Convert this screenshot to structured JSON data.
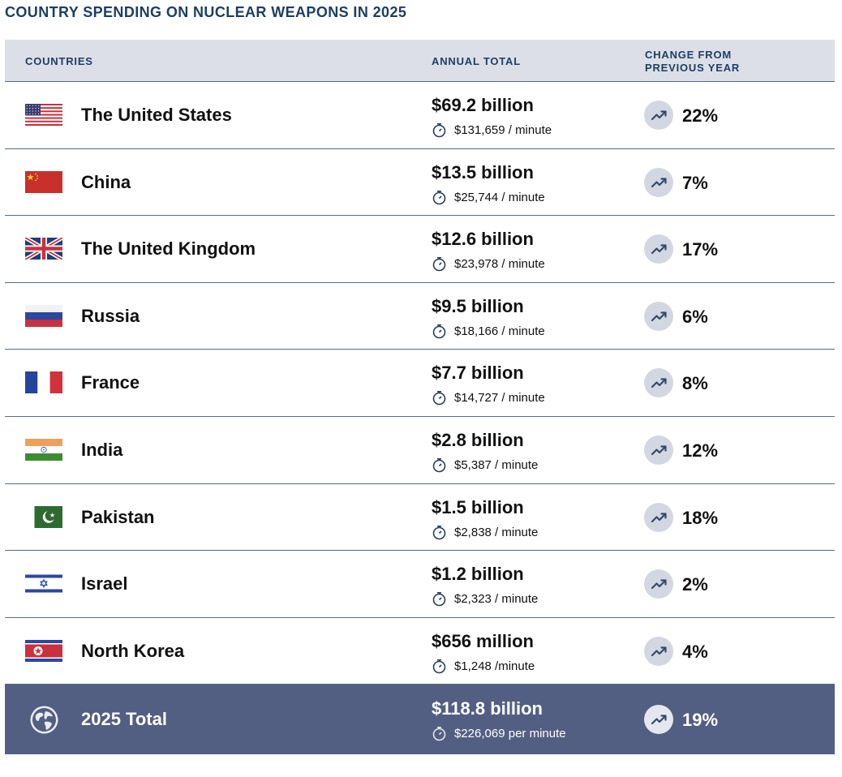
{
  "title": "COUNTRY SPENDING ON NUCLEAR WEAPONS IN 2025",
  "header": {
    "col_countries": "COUNTRIES",
    "col_annual": "ANNUAL TOTAL",
    "col_change": "CHANGE FROM PREVIOUS YEAR"
  },
  "rows": [
    {
      "country": "The United States",
      "amount": "$69.2 billion",
      "per_minute": "$131,659 / minute",
      "change": "22%",
      "flag": "us-flag"
    },
    {
      "country": "China",
      "amount": "$13.5 billion",
      "per_minute": "$25,744 / minute",
      "change": "7%",
      "flag": "china-flag"
    },
    {
      "country": "The United Kingdom",
      "amount": "$12.6 billion",
      "per_minute": "$23,978 / minute",
      "change": "17%",
      "flag": "uk-flag"
    },
    {
      "country": "Russia",
      "amount": "$9.5 billion",
      "per_minute": "$18,166 / minute",
      "change": "6%",
      "flag": "russia-flag"
    },
    {
      "country": "France",
      "amount": "$7.7 billion",
      "per_minute": "$14,727 / minute",
      "change": "8%",
      "flag": "france-flag"
    },
    {
      "country": "India",
      "amount": "$2.8 billion",
      "per_minute": "$5,387 / minute",
      "change": "12%",
      "flag": "india-flag"
    },
    {
      "country": "Pakistan",
      "amount": "$1.5 billion",
      "per_minute": "$2,838 / minute",
      "change": "18%",
      "flag": "pakistan-flag"
    },
    {
      "country": "Israel",
      "amount": "$1.2 billion",
      "per_minute": "$2,323 / minute",
      "change": "2%",
      "flag": "israel-flag"
    },
    {
      "country": "North Korea",
      "amount": "$656 million",
      "per_minute": "$1,248 /minute",
      "change": "4%",
      "flag": "north-korea-flag"
    }
  ],
  "total": {
    "label": "2025 Total",
    "amount": "$118.8 billion",
    "per_minute": "$226,069 per minute",
    "change": "19%",
    "icon": "globe-icon"
  },
  "colors": {
    "title": "#1e3e63",
    "header_bg": "#dcdfe8",
    "total_bg": "#525f82",
    "divider": "#5a6a86"
  },
  "chart_data": {
    "type": "table",
    "title": "COUNTRY SPENDING ON NUCLEAR WEAPONS IN 2025",
    "columns": [
      "COUNTRIES",
      "ANNUAL TOTAL",
      "CHANGE FROM PREVIOUS YEAR"
    ],
    "rows": [
      [
        "The United States",
        "$69.2 billion",
        "22%"
      ],
      [
        "China",
        "$13.5 billion",
        "7%"
      ],
      [
        "The United Kingdom",
        "$12.6 billion",
        "17%"
      ],
      [
        "Russia",
        "$9.5 billion",
        "6%"
      ],
      [
        "France",
        "$7.7 billion",
        "8%"
      ],
      [
        "India",
        "$2.8 billion",
        "12%"
      ],
      [
        "Pakistan",
        "$1.5 billion",
        "18%"
      ],
      [
        "Israel",
        "$1.2 billion",
        "2%"
      ],
      [
        "North Korea",
        "$656 million",
        "4%"
      ],
      [
        "2025 Total",
        "$118.8 billion",
        "19%"
      ]
    ]
  }
}
